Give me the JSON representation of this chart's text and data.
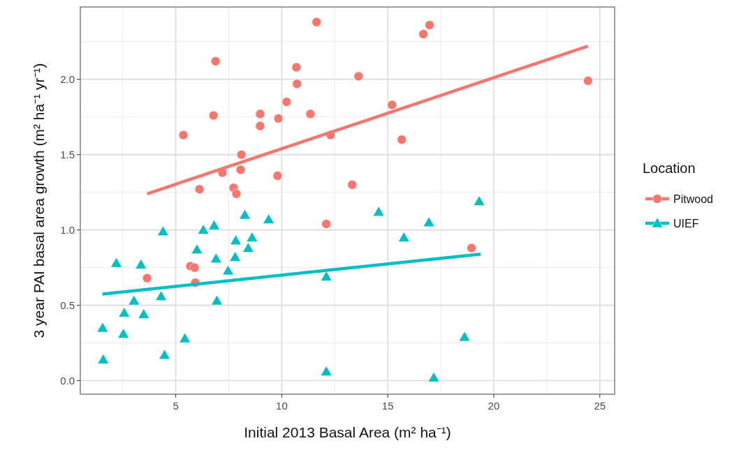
{
  "chart_data": {
    "type": "scatter",
    "xlabel": "Initial 2013 Basal Area (m² ha⁻¹)",
    "ylabel": "3 year PAI basal area growth (m² ha⁻¹ yr⁻¹)",
    "legend_title": "Location",
    "xlim": [
      0.5,
      25.7
    ],
    "ylim": [
      -0.09,
      2.48
    ],
    "xticks": [
      5,
      10,
      15,
      20,
      25
    ],
    "yticks": [
      {
        "value": 0,
        "label": "0.0"
      },
      {
        "value": 0.5,
        "label": "0.5"
      },
      {
        "value": 1,
        "label": "1.0"
      },
      {
        "value": 1.5,
        "label": "1.5"
      },
      {
        "value": 2,
        "label": "2.0"
      }
    ],
    "grid": true,
    "legend": "right",
    "series": [
      {
        "name": "Pitwood",
        "color": "#f8766d",
        "marker": "circle",
        "x": [
          5.36,
          6.88,
          6.78,
          6.12,
          7.2,
          7.73,
          7.86,
          8.1,
          8.06,
          8.98,
          8.98,
          9.84,
          9.8,
          10.23,
          10.69,
          10.72,
          11.35,
          11.64,
          12.3,
          12.1,
          13.62,
          13.32,
          15.2,
          15.66,
          16.68,
          16.97,
          18.95,
          24.44,
          5.69,
          5.89,
          5.92,
          3.65
        ],
        "values": [
          1.63,
          2.12,
          1.76,
          1.27,
          1.38,
          1.28,
          1.24,
          1.5,
          1.4,
          1.77,
          1.69,
          1.74,
          1.36,
          1.85,
          2.08,
          1.97,
          1.77,
          2.38,
          1.63,
          1.04,
          2.02,
          1.3,
          1.83,
          1.6,
          2.3,
          2.36,
          0.88,
          1.99,
          0.76,
          0.75,
          0.65,
          0.68
        ]
      },
      {
        "name": "UIEF",
        "color": "#00bfc4",
        "marker": "triangle",
        "x": [
          1.55,
          1.58,
          2.2,
          2.53,
          2.57,
          3.03,
          3.36,
          3.49,
          4.31,
          4.4,
          4.47,
          5.43,
          6.0,
          6.3,
          6.81,
          6.9,
          6.94,
          7.47,
          7.8,
          7.83,
          8.26,
          8.42,
          8.6,
          9.38,
          12.1,
          12.1,
          14.57,
          15.76,
          16.94,
          17.17,
          18.62,
          19.31
        ],
        "values": [
          0.35,
          0.14,
          0.78,
          0.31,
          0.45,
          0.53,
          0.77,
          0.44,
          0.56,
          0.99,
          0.17,
          0.28,
          0.87,
          1.0,
          1.03,
          0.81,
          0.53,
          0.73,
          0.82,
          0.93,
          1.1,
          0.88,
          0.95,
          1.07,
          0.69,
          0.06,
          1.12,
          0.95,
          1.05,
          0.02,
          0.29,
          1.19
        ]
      },
      {
        "type": "line",
        "color": "#f8766d",
        "x": [
          3.65,
          24.44
        ],
        "values": [
          1.24,
          2.22
        ]
      },
      {
        "type": "line",
        "color": "#00bfc4",
        "x": [
          1.55,
          19.38
        ],
        "values": [
          0.574,
          0.84
        ]
      }
    ]
  }
}
